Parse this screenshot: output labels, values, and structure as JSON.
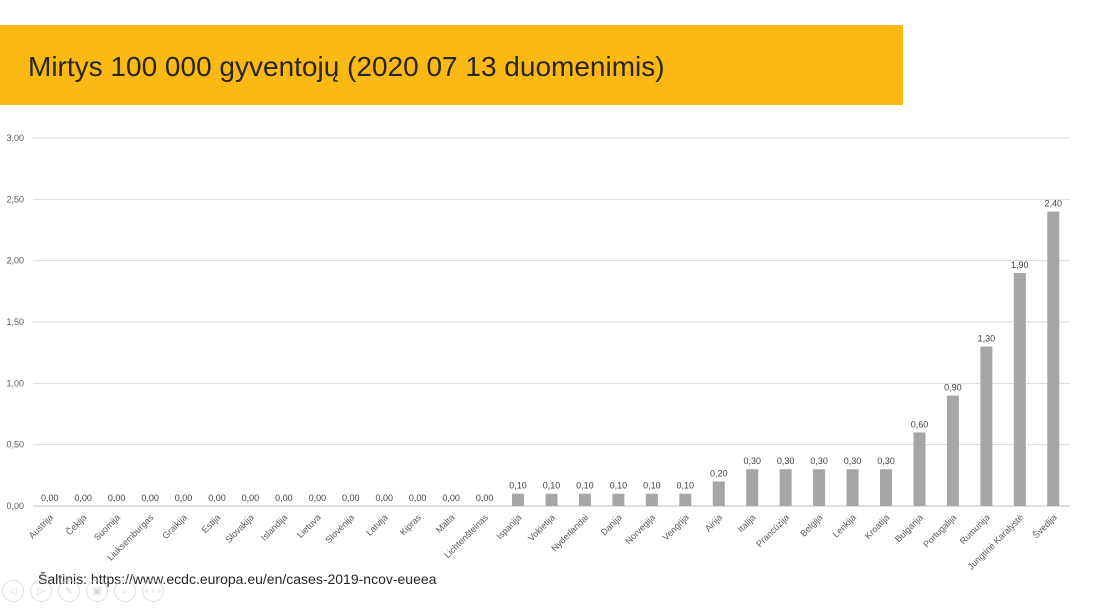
{
  "slide": {
    "title": "Mirtys 100 000 gyventojų (2020 07 13 duomenimis)",
    "title_bar_color": "#FDB913",
    "source": "Šaltinis: https://www.ecdc.europa.eu/en/cases-2019-ncov-eueea"
  },
  "chart_data": {
    "type": "bar",
    "categories": [
      "Austrija",
      "Čekija",
      "Suomija",
      "Liuksemburgas",
      "Graikija",
      "Estija",
      "Slovakija",
      "Islandija",
      "Lietuva",
      "Slovėnija",
      "Latvija",
      "Kipras",
      "Malta",
      "Lichtenšteinas",
      "Ispanija",
      "Vokietija",
      "Nyderlandai",
      "Danija",
      "Norvegija",
      "Vengrija",
      "Airija",
      "Italija",
      "Prancūzija",
      "Belgija",
      "Lenkija",
      "Kroatija",
      "Bulgarija",
      "Portugalija",
      "Rumunija",
      "Jungtinė Karalystė",
      "Švedija"
    ],
    "values": [
      0,
      0,
      0,
      0,
      0,
      0,
      0,
      0,
      0,
      0,
      0,
      0,
      0,
      0,
      0.1,
      0.1,
      0.1,
      0.1,
      0.1,
      0.1,
      0.2,
      0.3,
      0.3,
      0.3,
      0.3,
      0.3,
      0.6,
      0.9,
      1.3,
      1.9,
      2.4
    ],
    "data_labels": [
      "0,00",
      "0,00",
      "0,00",
      "0,00",
      "0,00",
      "0,00",
      "0,00",
      "0,00",
      "0,00",
      "0,00",
      "0,00",
      "0,00",
      "0,00",
      "0,00",
      "0,10",
      "0,10",
      "0,10",
      "0,10",
      "0,10",
      "0,10",
      "0,20",
      "0,30",
      "0,30",
      "0,30",
      "0,30",
      "0,30",
      "0,60",
      "0,90",
      "1,30",
      "1,90",
      "2,40"
    ],
    "yticks": [
      "0,00",
      "0,50",
      "1,00",
      "1,50",
      "2,00",
      "2,50",
      "3,00"
    ],
    "ylim": [
      0,
      3
    ],
    "grid": true,
    "bar_color": "#A6A6A6"
  },
  "nav": {
    "icons": [
      "previous-slide-icon",
      "next-slide-icon",
      "pen-icon",
      "slides-icon",
      "zoom-icon",
      "more-options-icon"
    ],
    "glyphs": [
      "◁",
      "▷",
      "✎",
      "▣",
      "⌕",
      "∘∘∘"
    ]
  }
}
